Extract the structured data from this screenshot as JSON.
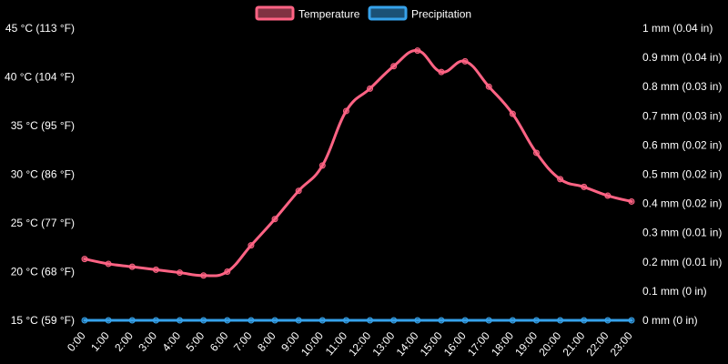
{
  "chart_data": {
    "type": "line",
    "categories": [
      "0:00",
      "1:00",
      "2:00",
      "3:00",
      "4:00",
      "5:00",
      "6:00",
      "7:00",
      "8:00",
      "9:00",
      "10:00",
      "11:00",
      "12:00",
      "13:00",
      "14:00",
      "15:00",
      "16:00",
      "17:00",
      "18:00",
      "19:00",
      "20:00",
      "21:00",
      "22:00",
      "23:00"
    ],
    "series": [
      {
        "name": "Temperature",
        "axis": "left",
        "color": "#ff6384",
        "values": [
          21.3,
          20.8,
          20.5,
          20.2,
          19.9,
          19.6,
          20.0,
          22.7,
          25.4,
          28.3,
          30.9,
          36.5,
          38.8,
          41.1,
          42.7,
          40.5,
          41.6,
          39.0,
          36.2,
          32.2,
          29.5,
          28.7,
          27.8,
          27.2
        ]
      },
      {
        "name": "Precipitation",
        "axis": "right",
        "color": "#36a2eb",
        "values": [
          0,
          0,
          0,
          0,
          0,
          0,
          0,
          0,
          0,
          0,
          0,
          0,
          0,
          0,
          0,
          0,
          0,
          0,
          0,
          0,
          0,
          0,
          0,
          0
        ]
      }
    ],
    "y_left": {
      "min": 15,
      "max": 45,
      "step": 5,
      "tick_labels": [
        "15 °C (59 °F)",
        "20 °C (68 °F)",
        "25 °C (77 °F)",
        "30 °C (86 °F)",
        "35 °C (95 °F)",
        "40 °C (104 °F)",
        "45 °C (113 °F)"
      ]
    },
    "y_right": {
      "min": 0,
      "max": 1,
      "step": 0.1,
      "tick_labels": [
        "0 mm (0 in)",
        "0.1 mm (0 in)",
        "0.2 mm (0.01 in)",
        "0.3 mm (0.01 in)",
        "0.4 mm (0.02 in)",
        "0.5 mm (0.02 in)",
        "0.6 mm (0.02 in)",
        "0.7 mm (0.03 in)",
        "0.8 mm (0.03 in)",
        "0.9 mm (0.04 in)",
        "1 mm (0.04 in)"
      ]
    },
    "legend": {
      "position": "top",
      "entries": [
        "Temperature",
        "Precipitation"
      ]
    },
    "grid": false,
    "background": "#000000",
    "text_color": "#ffffff"
  }
}
